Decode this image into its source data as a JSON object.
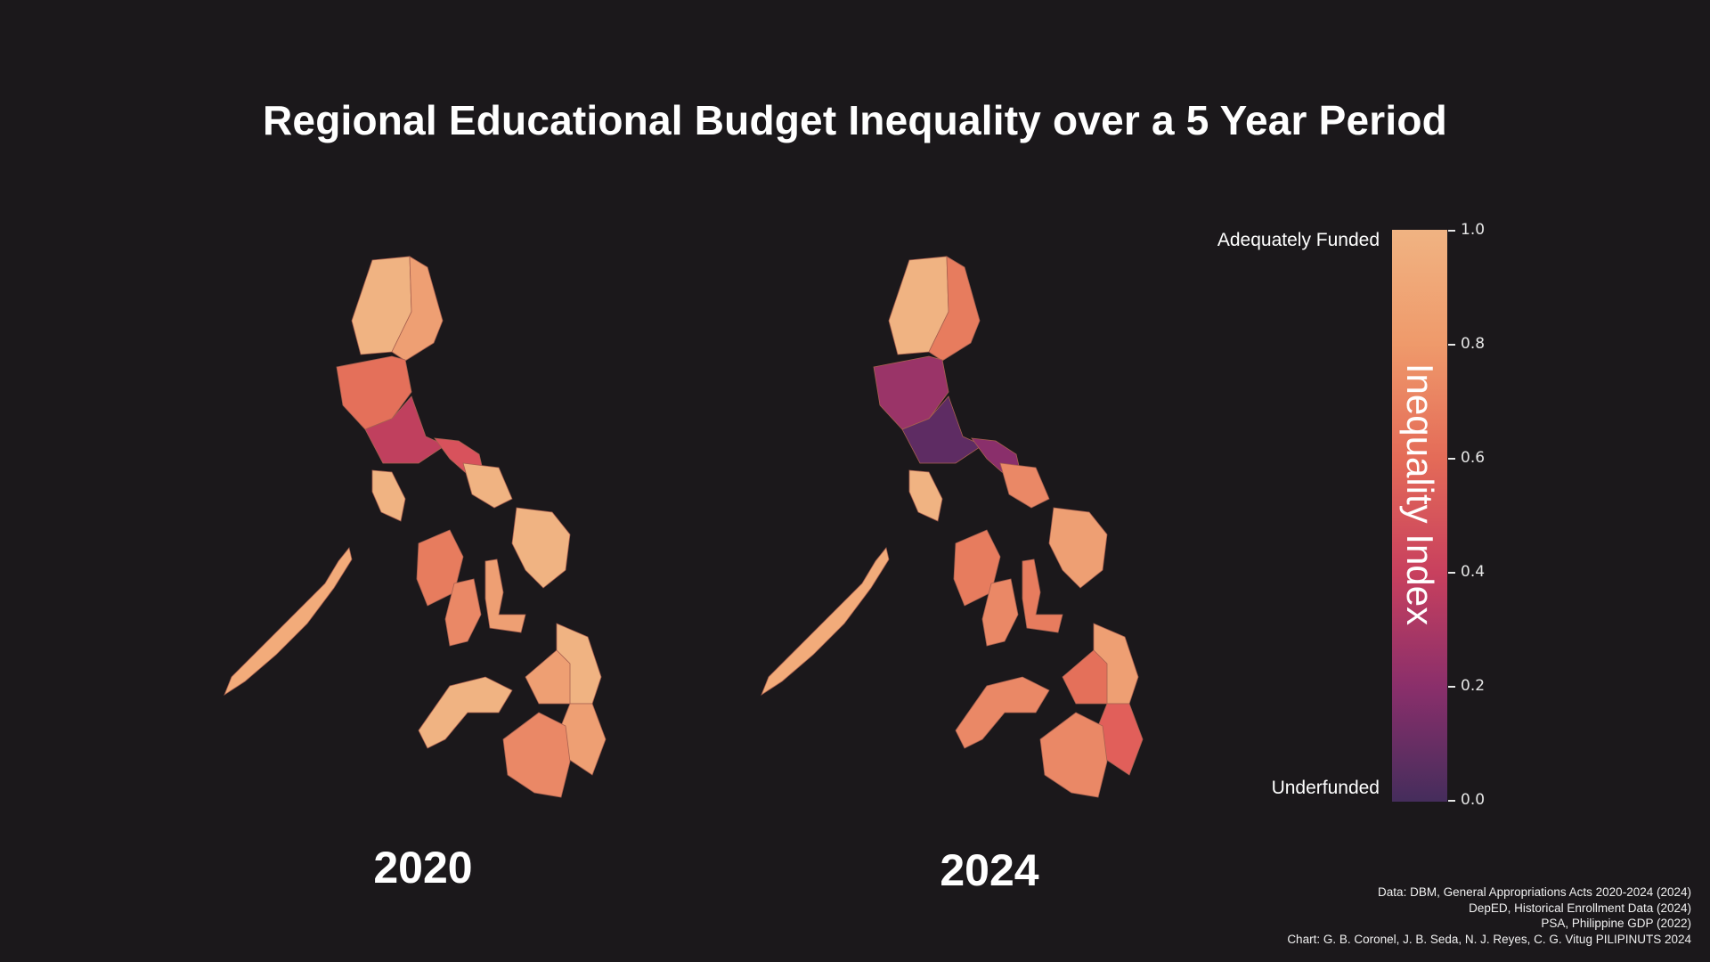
{
  "title": "Regional Educational Budget Inequality over a 5 Year Period",
  "maps": [
    {
      "year_label": "2020"
    },
    {
      "year_label": "2024"
    }
  ],
  "colorbar": {
    "title": "Inequality Index",
    "top_label": "Adequately Funded",
    "bottom_label": "Underfunded",
    "ticks": [
      "0.0",
      "0.2",
      "0.4",
      "0.6",
      "0.8",
      "1.0"
    ],
    "range": [
      0,
      1
    ],
    "colormap": [
      "#452d5c",
      "#8a2f6b",
      "#c8405e",
      "#e46b58",
      "#ef9a6b",
      "#f0b382"
    ]
  },
  "credits": [
    "Data: DBM, General Appropriations Acts 2020-2024 (2024)",
    "DepED, Historical Enrollment Data (2024)",
    "PSA, Philippine GDP (2022)",
    "Chart: G. B. Coronel, J. B. Seda, N. J. Reyes, C. G. Vitug PILIPINUTS 2024"
  ]
}
